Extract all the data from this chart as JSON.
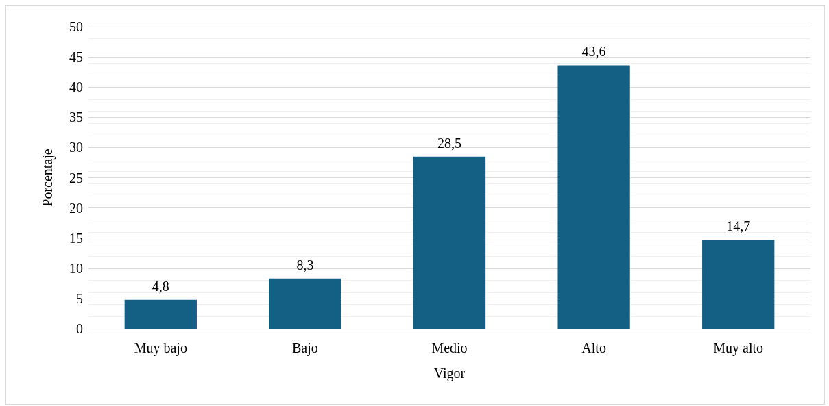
{
  "chart_data": {
    "type": "bar",
    "xlabel": "Vigor",
    "ylabel": "Porcentaje",
    "categories": [
      "Muy bajo",
      "Bajo",
      "Medio",
      "Alto",
      "Muy alto"
    ],
    "values": [
      4.8,
      8.3,
      28.5,
      43.6,
      14.7
    ],
    "value_labels": [
      "4,8",
      "8,3",
      "28,5",
      "43,6",
      "14,7"
    ],
    "color": "#145f84",
    "ylim": [
      0,
      50
    ],
    "yticks": [
      0,
      5,
      10,
      15,
      20,
      25,
      30,
      35,
      40,
      45,
      50
    ],
    "grid": "y"
  }
}
